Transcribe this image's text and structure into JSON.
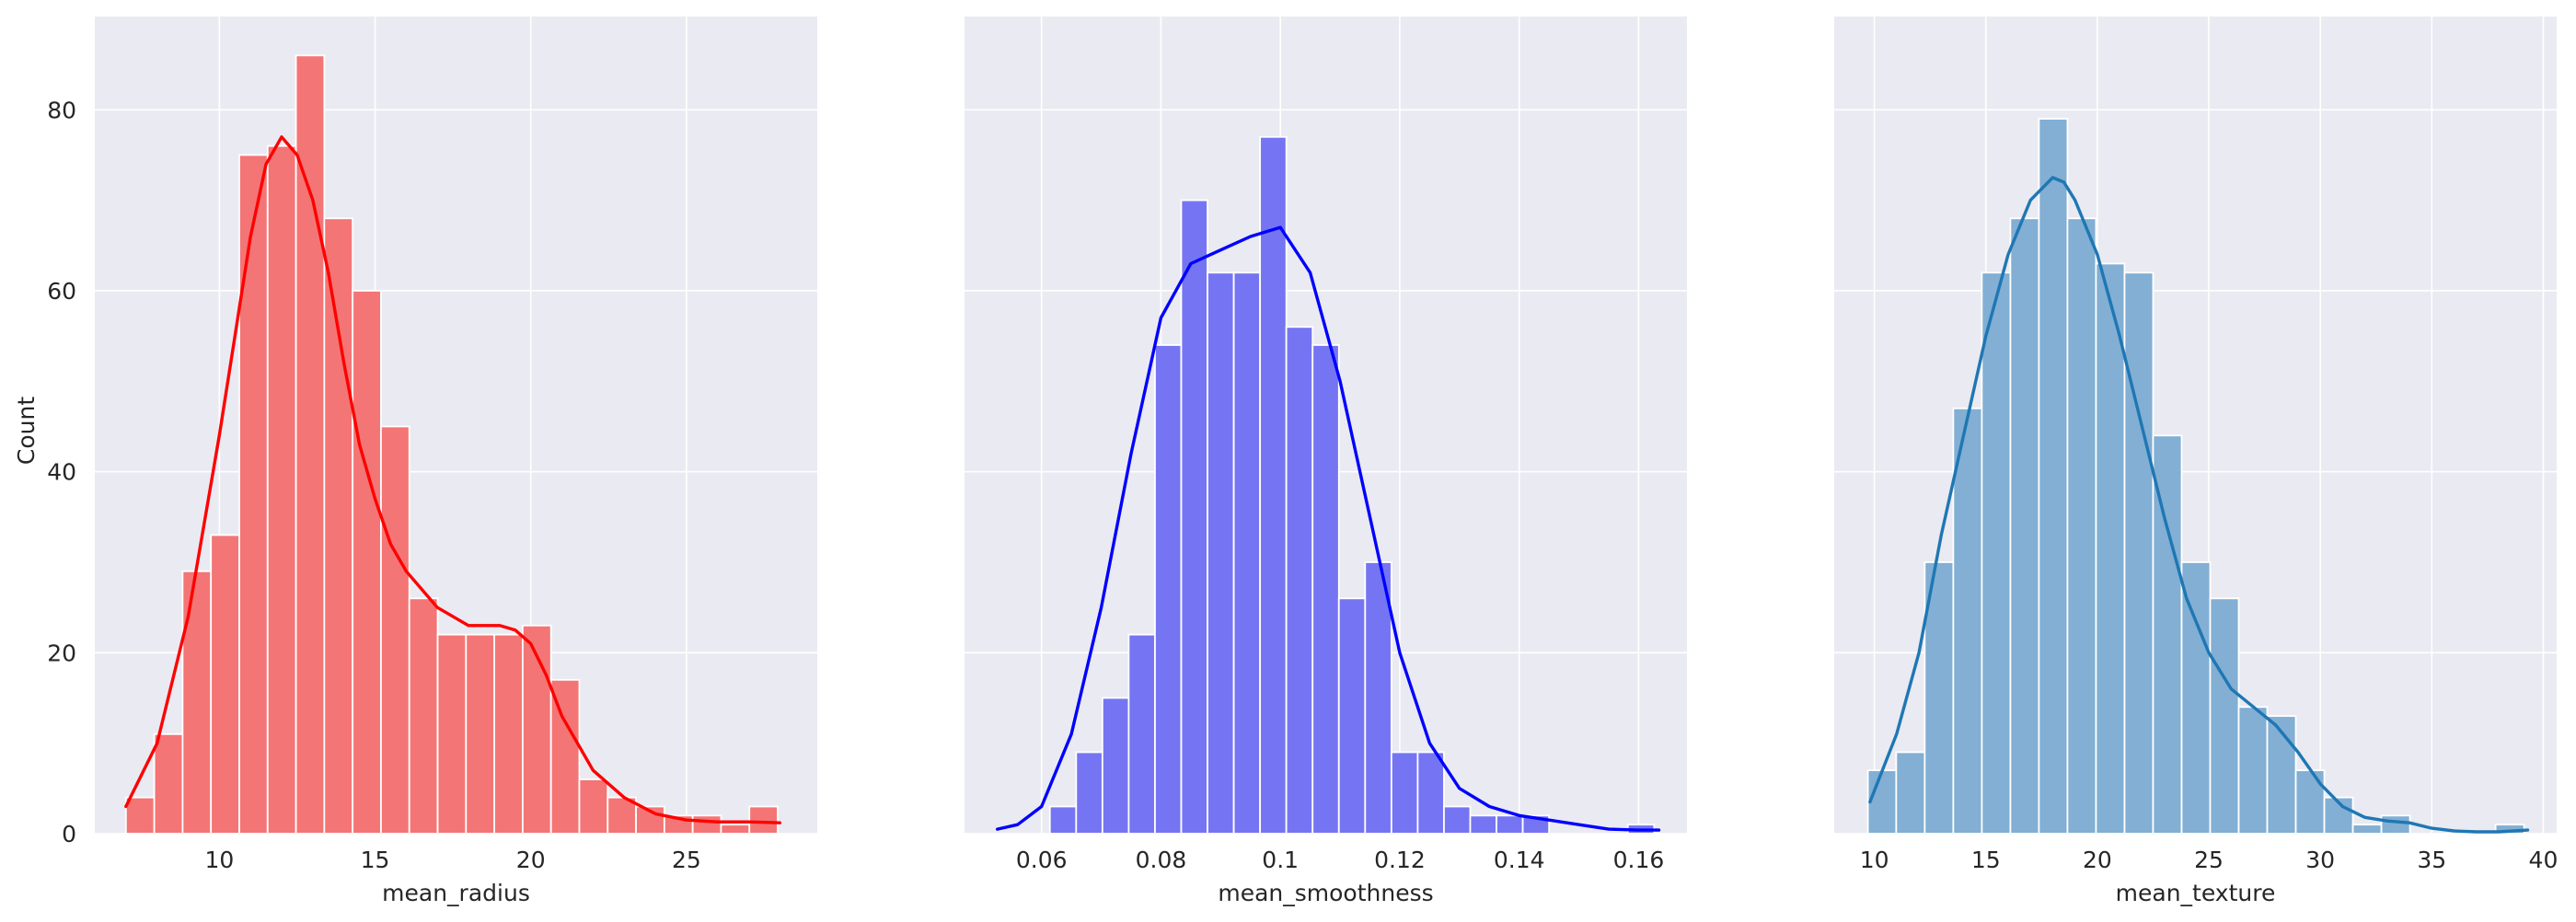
{
  "figure": {
    "background": "#ffffff",
    "panel_background": "#eaeaf2",
    "grid_color": "#ffffff",
    "text_color": "#262626",
    "shared_ylabel": "Count"
  },
  "chart_data": [
    {
      "type": "bar",
      "subtype": "histogram-with-kde",
      "xlabel": "mean_radius",
      "ylabel": "Count",
      "color": "#ff0000",
      "bar_color": "#f47575",
      "bar_edges": [
        7.0,
        7.91,
        8.82,
        9.73,
        10.64,
        11.55,
        12.46,
        13.37,
        14.28,
        15.19,
        16.1,
        17.01,
        17.92,
        18.83,
        19.74,
        20.65,
        21.56,
        22.47,
        23.38,
        24.29,
        25.2,
        26.11,
        27.02,
        27.93
      ],
      "bar_counts": [
        4,
        11,
        29,
        33,
        75,
        76,
        86,
        68,
        60,
        45,
        26,
        22,
        22,
        22,
        23,
        17,
        6,
        4,
        3,
        2,
        2,
        1,
        3
      ],
      "kde": {
        "x": [
          7.0,
          8.0,
          9.0,
          10.0,
          10.5,
          11.0,
          11.5,
          12.0,
          12.5,
          13.0,
          13.5,
          14.0,
          14.5,
          15.0,
          15.5,
          16.0,
          16.5,
          17.0,
          18.0,
          18.5,
          19.0,
          19.5,
          20.0,
          20.5,
          21.0,
          22.0,
          23.0,
          24.0,
          25.0,
          26.0,
          27.0,
          28.0
        ],
        "y": [
          3,
          10,
          24,
          44,
          55,
          66,
          74,
          77,
          75,
          70,
          62,
          52,
          43,
          37,
          32,
          29,
          27,
          25,
          23,
          23,
          23,
          22.5,
          21,
          17.5,
          13,
          7,
          4,
          2.2,
          1.5,
          1.3,
          1.3,
          1.2
        ]
      },
      "xticks": [
        10,
        15,
        20,
        25
      ],
      "xlim": [
        6.0,
        29.2
      ],
      "yticks": [
        0,
        20,
        40,
        60,
        80
      ],
      "ylim": [
        0,
        90.3
      ]
    },
    {
      "type": "bar",
      "subtype": "histogram-with-kde",
      "xlabel": "mean_smoothness",
      "ylabel": "",
      "color": "#0000ff",
      "bar_color": "#7575f3",
      "bar_edges": [
        0.0526,
        0.057,
        0.0614,
        0.0658,
        0.0702,
        0.0746,
        0.079,
        0.0834,
        0.0878,
        0.0922,
        0.0966,
        0.101,
        0.1054,
        0.1098,
        0.1142,
        0.1186,
        0.123,
        0.1274,
        0.1318,
        0.1362,
        0.1406,
        0.145,
        0.1494,
        0.1538,
        0.1582,
        0.1626
      ],
      "bar_counts": [
        0,
        0,
        3,
        9,
        15,
        22,
        54,
        70,
        62,
        62,
        77,
        56,
        54,
        26,
        30,
        9,
        9,
        3,
        2,
        2,
        2,
        0,
        0,
        0,
        1
      ],
      "kde": {
        "x": [
          0.0526,
          0.056,
          0.06,
          0.065,
          0.07,
          0.075,
          0.08,
          0.085,
          0.09,
          0.095,
          0.1,
          0.105,
          0.11,
          0.115,
          0.12,
          0.125,
          0.13,
          0.135,
          0.14,
          0.145,
          0.15,
          0.155,
          0.16,
          0.1634
        ],
        "y": [
          0.5,
          1,
          3,
          11,
          25,
          42,
          57,
          63,
          64.5,
          66,
          67,
          62,
          50,
          35,
          20,
          10,
          5,
          3,
          2,
          1.5,
          1,
          0.5,
          0.4,
          0.4
        ]
      },
      "xticks": [
        0.06,
        0.08,
        0.1,
        0.12,
        0.14,
        0.16
      ],
      "xlim": [
        0.0471,
        0.1681
      ],
      "yticks": [
        0,
        20,
        40,
        60,
        80
      ],
      "ylim": [
        0,
        90.3
      ]
    },
    {
      "type": "bar",
      "subtype": "histogram-with-kde",
      "xlabel": "mean_texture",
      "ylabel": "",
      "color": "#1f77b4",
      "bar_color": "#82afd3",
      "bar_edges": [
        9.71,
        10.98,
        12.26,
        13.54,
        14.82,
        16.1,
        17.38,
        18.66,
        19.94,
        21.22,
        22.5,
        23.78,
        25.06,
        26.34,
        27.62,
        28.9,
        30.18,
        31.46,
        32.74,
        34.02,
        35.3,
        36.58,
        37.86,
        39.14
      ],
      "bar_counts": [
        7,
        9,
        30,
        47,
        62,
        68,
        79,
        68,
        63,
        62,
        44,
        30,
        26,
        14,
        13,
        7,
        4,
        1,
        2,
        0,
        0,
        0,
        1
      ],
      "kde": {
        "x": [
          9.8,
          11.0,
          12.0,
          13.0,
          14.0,
          15.0,
          16.0,
          17.0,
          18.0,
          18.5,
          19.0,
          20.0,
          21.0,
          22.0,
          23.0,
          24.0,
          25.0,
          26.0,
          27.0,
          28.0,
          29.0,
          30.0,
          31.0,
          32.0,
          33.0,
          34.0,
          35.0,
          36.0,
          37.0,
          38.0,
          39.3
        ],
        "y": [
          3.5,
          11,
          20,
          33,
          44,
          55,
          64,
          70,
          72.5,
          72,
          70,
          64,
          55,
          45,
          35,
          26,
          20,
          16,
          14,
          12,
          9,
          5.5,
          3,
          1.8,
          1.4,
          1.2,
          0.6,
          0.3,
          0.2,
          0.2,
          0.4
        ]
      },
      "xticks": [
        10,
        15,
        20,
        25,
        30,
        35,
        40
      ],
      "xlim": [
        8.2,
        40.6
      ],
      "yticks": [
        0,
        20,
        40,
        60,
        80
      ],
      "ylim": [
        0,
        90.3
      ]
    }
  ]
}
